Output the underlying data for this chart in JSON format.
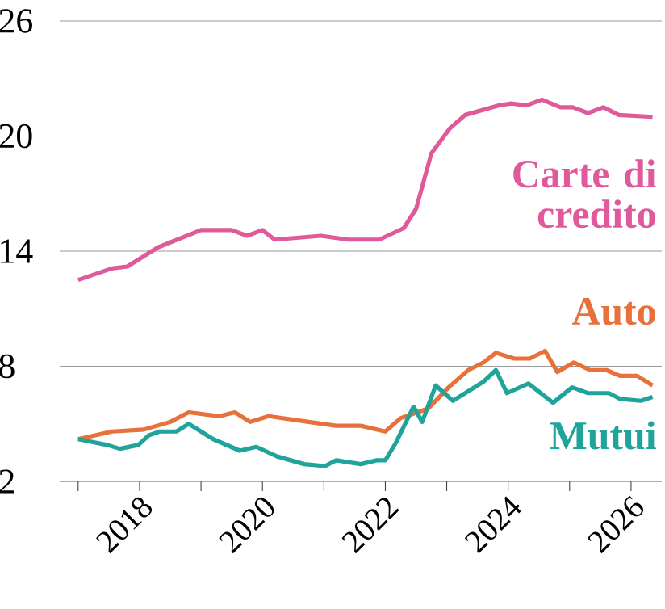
{
  "chart_data": {
    "type": "line",
    "xlim": [
      2016.7,
      2026.5
    ],
    "ylim": [
      2,
      26
    ],
    "xticks": [
      {
        "value": 2017,
        "label": null
      },
      2018,
      {
        "value": 2019,
        "label": null
      },
      2020,
      {
        "value": 2021,
        "label": null
      },
      2022,
      {
        "value": 2023,
        "label": null
      },
      2024,
      {
        "value": 2025,
        "label": null
      },
      2026
    ],
    "yticks": [
      2,
      8,
      14,
      20,
      26
    ],
    "grid": "y",
    "line_style": "solid",
    "series": [
      {
        "name": "Carte di credito",
        "color": "#e05a9b",
        "x": [
          2017.0,
          2017.55,
          2017.8,
          2018.3,
          2019.0,
          2019.5,
          2019.75,
          2020.0,
          2020.2,
          2020.95,
          2021.4,
          2021.9,
          2022.3,
          2022.5,
          2022.75,
          2023.05,
          2023.3,
          2023.85,
          2024.05,
          2024.3,
          2024.55,
          2024.85,
          2025.05,
          2025.3,
          2025.55,
          2025.8,
          2026.35
        ],
        "values": [
          12.5,
          13.1,
          13.2,
          14.2,
          15.1,
          15.1,
          14.8,
          15.1,
          14.6,
          14.8,
          14.6,
          14.6,
          15.2,
          16.2,
          19.1,
          20.4,
          21.1,
          21.6,
          21.7,
          21.6,
          21.9,
          21.5,
          21.5,
          21.2,
          21.5,
          21.1,
          21.0
        ]
      },
      {
        "name": "Auto",
        "color": "#e8703a",
        "x": [
          2017.0,
          2017.55,
          2018.07,
          2018.5,
          2018.8,
          2019.3,
          2019.55,
          2019.8,
          2020.1,
          2020.75,
          2021.2,
          2021.6,
          2022.0,
          2022.25,
          2022.7,
          2023.03,
          2023.35,
          2023.6,
          2023.8,
          2024.1,
          2024.35,
          2024.6,
          2024.8,
          2025.07,
          2025.33,
          2025.6,
          2025.82,
          2026.1,
          2026.35
        ],
        "values": [
          4.2,
          4.6,
          4.7,
          5.1,
          5.6,
          5.4,
          5.6,
          5.1,
          5.4,
          5.1,
          4.9,
          4.9,
          4.6,
          5.3,
          5.8,
          6.9,
          7.8,
          8.2,
          8.7,
          8.4,
          8.4,
          8.8,
          7.7,
          8.2,
          7.8,
          7.8,
          7.5,
          7.5,
          7.0
        ]
      },
      {
        "name": "Mutui",
        "color": "#1fa39a",
        "x": [
          2017.0,
          2017.47,
          2017.68,
          2017.98,
          2018.15,
          2018.33,
          2018.6,
          2018.8,
          2019.2,
          2019.63,
          2019.9,
          2020.24,
          2020.68,
          2021.02,
          2021.2,
          2021.6,
          2021.86,
          2022.0,
          2022.17,
          2022.46,
          2022.6,
          2022.82,
          2023.1,
          2023.3,
          2023.6,
          2023.8,
          2023.98,
          2024.33,
          2024.73,
          2025.04,
          2025.3,
          2025.64,
          2025.82,
          2026.16,
          2026.35
        ],
        "values": [
          4.2,
          3.9,
          3.7,
          3.9,
          4.4,
          4.6,
          4.6,
          5.0,
          4.2,
          3.6,
          3.8,
          3.3,
          2.9,
          2.8,
          3.1,
          2.9,
          3.1,
          3.1,
          4.0,
          5.9,
          5.1,
          7.0,
          6.2,
          6.6,
          7.2,
          7.8,
          6.6,
          7.1,
          6.1,
          6.9,
          6.6,
          6.6,
          6.3,
          6.2,
          6.4
        ]
      }
    ]
  }
}
